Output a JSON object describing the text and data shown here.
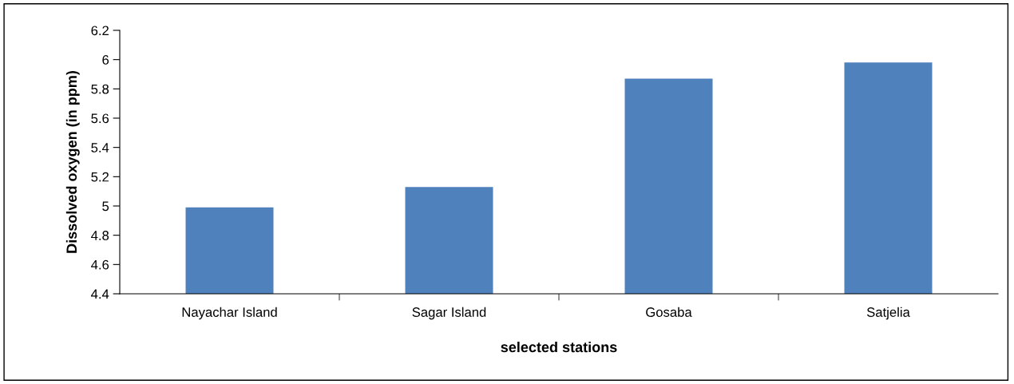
{
  "chart_data": {
    "type": "bar",
    "categories": [
      "Nayachar Island",
      "Sagar Island",
      "Gosaba",
      "Satjelia"
    ],
    "values": [
      4.99,
      5.13,
      5.87,
      5.98
    ],
    "color": "#4f81bd",
    "xlabel": "selected stations",
    "ylabel": "Dissolved oxygen (in ppm)",
    "ylim": [
      4.4,
      6.2
    ],
    "yticks": [
      4.4,
      4.6,
      4.8,
      5,
      5.2,
      5.4,
      5.6,
      5.8,
      6,
      6.2
    ],
    "grid": false,
    "legend": false
  }
}
